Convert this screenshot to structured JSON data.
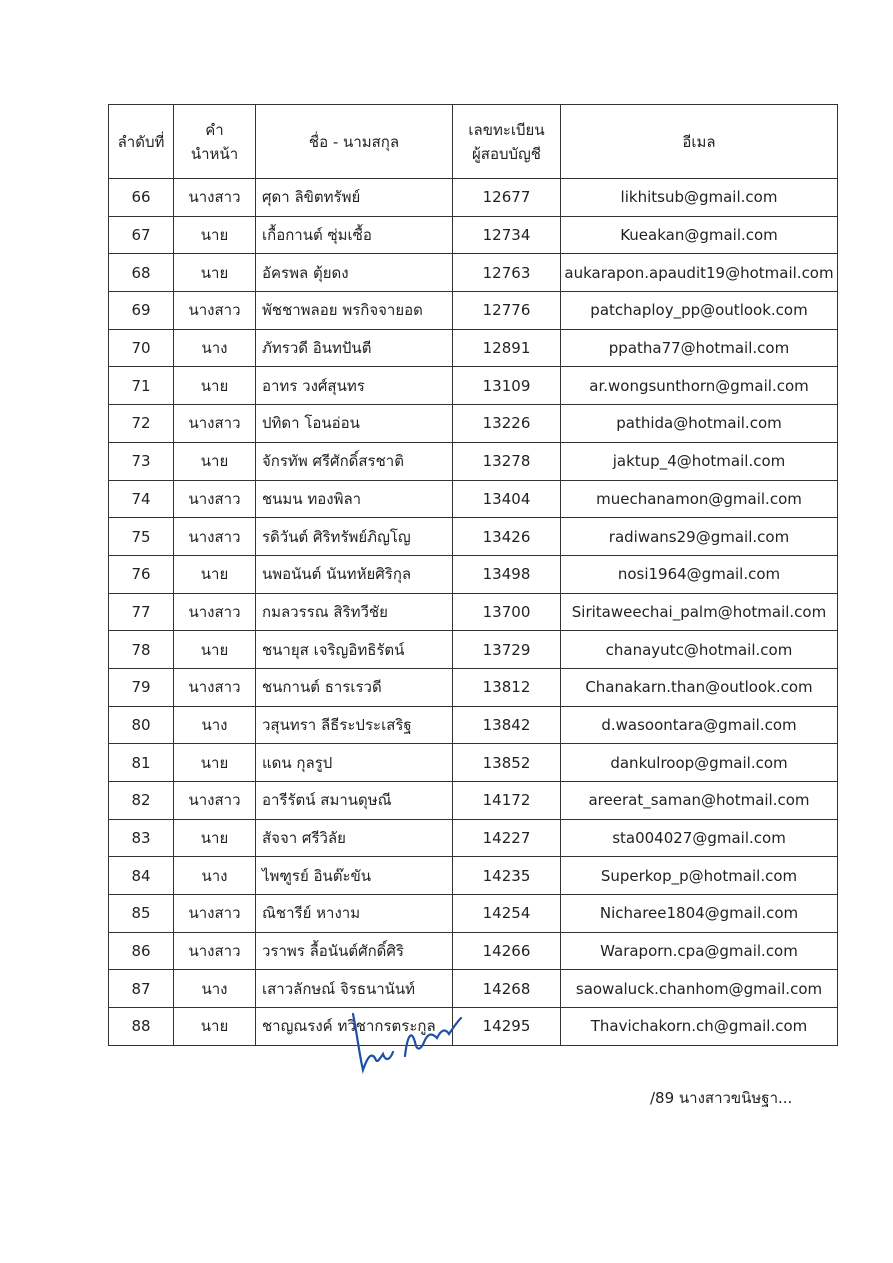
{
  "headers": {
    "no": "ลำดับที่",
    "title_line1": "คำ",
    "title_line2": "นำหน้า",
    "name": "ชื่อ - นามสกุล",
    "reg_line1": "เลขทะเบียน",
    "reg_line2": "ผู้สอบบัญชี",
    "email": "อีเมล"
  },
  "rows": [
    {
      "no": "66",
      "title": "นางสาว",
      "name": "ศุดา ลิขิตทรัพย์",
      "reg": "12677",
      "email": "likhitsub@gmail.com"
    },
    {
      "no": "67",
      "title": "นาย",
      "name": "เกื้อกานต์ ซุ่มเซื้อ",
      "reg": "12734",
      "email": "Kueakan@gmail.com"
    },
    {
      "no": "68",
      "title": "นาย",
      "name": "อัครพล ตุ้ยดง",
      "reg": "12763",
      "email": "aukarapon.apaudit19@hotmail.com"
    },
    {
      "no": "69",
      "title": "นางสาว",
      "name": "พัชชาพลอย พรกิจจายอด",
      "reg": "12776",
      "email": "patchaploy_pp@outlook.com"
    },
    {
      "no": "70",
      "title": "นาง",
      "name": "ภัทรวดี อินทปันตี",
      "reg": "12891",
      "email": "ppatha77@hotmail.com"
    },
    {
      "no": "71",
      "title": "นาย",
      "name": "อาทร วงศ์สุนทร",
      "reg": "13109",
      "email": "ar.wongsunthorn@gmail.com"
    },
    {
      "no": "72",
      "title": "นางสาว",
      "name": "ปทิดา โอนอ่อน",
      "reg": "13226",
      "email": "pathida@hotmail.com"
    },
    {
      "no": "73",
      "title": "นาย",
      "name": "จักรทัพ ศรีศักดิ์สรชาติ",
      "reg": "13278",
      "email": "jaktup_4@hotmail.com"
    },
    {
      "no": "74",
      "title": "นางสาว",
      "name": "ชนมน ทองพิลา",
      "reg": "13404",
      "email": "muechanamon@gmail.com"
    },
    {
      "no": "75",
      "title": "นางสาว",
      "name": "รดิวันต์ ศิริทรัพย์ภิญโญ",
      "reg": "13426",
      "email": "radiwans29@gmail.com"
    },
    {
      "no": "76",
      "title": "นาย",
      "name": "นพอนันต์  นันทหัยศิริกุล",
      "reg": "13498",
      "email": "nosi1964@gmail.com"
    },
    {
      "no": "77",
      "title": "นางสาว",
      "name": "กมลวรรณ สิริทวีชัย",
      "reg": "13700",
      "email": "Siritaweechai_palm@hotmail.com"
    },
    {
      "no": "78",
      "title": "นาย",
      "name": "ชนายุส เจริญอิทธิรัตน์",
      "reg": "13729",
      "email": "chanayutc@hotmail.com"
    },
    {
      "no": "79",
      "title": "นางสาว",
      "name": "ชนกานต์ ธารเรวดี",
      "reg": "13812",
      "email": "Chanakarn.than@outlook.com"
    },
    {
      "no": "80",
      "title": "นาง",
      "name": "วสุนทรา ลีธีระประเสริฐ",
      "reg": "13842",
      "email": "d.wasoontara@gmail.com"
    },
    {
      "no": "81",
      "title": "นาย",
      "name": "แดน  กุลรูป",
      "reg": "13852",
      "email": "dankulroop@gmail.com"
    },
    {
      "no": "82",
      "title": "นางสาว",
      "name": "อารีรัตน์ สมานดุษณี",
      "reg": "14172",
      "email": "areerat_saman@hotmail.com"
    },
    {
      "no": "83",
      "title": "นาย",
      "name": "สัจจา ศรีวิลัย",
      "reg": "14227",
      "email": "sta004027@gmail.com"
    },
    {
      "no": "84",
      "title": "นาง",
      "name": "ไพฑูรย์ อินต๊ะขัน",
      "reg": "14235",
      "email": "Superkop_p@hotmail.com"
    },
    {
      "no": "85",
      "title": "นางสาว",
      "name": "ณิชารีย์ หางาม",
      "reg": "14254",
      "email": "Nicharee1804@gmail.com"
    },
    {
      "no": "86",
      "title": "นางสาว",
      "name": "วราพร ลื้อนันต์ศักดิ์ศิริ",
      "reg": "14266",
      "email": "Waraporn.cpa@gmail.com"
    },
    {
      "no": "87",
      "title": "นาง",
      "name": "เสาวลักษณ์ จิรธนานันท์",
      "reg": "14268",
      "email": "saowaluck.chanhom@gmail.com"
    },
    {
      "no": "88",
      "title": "นาย",
      "name": "ชาญณรงค์ ทวิชากรตระกูล",
      "reg": "14295",
      "email": "Thavichakorn.ch@gmail.com"
    }
  ],
  "footer": "/89 นางสาวขนิษฐา...",
  "signature_color": "#1f4fa8"
}
